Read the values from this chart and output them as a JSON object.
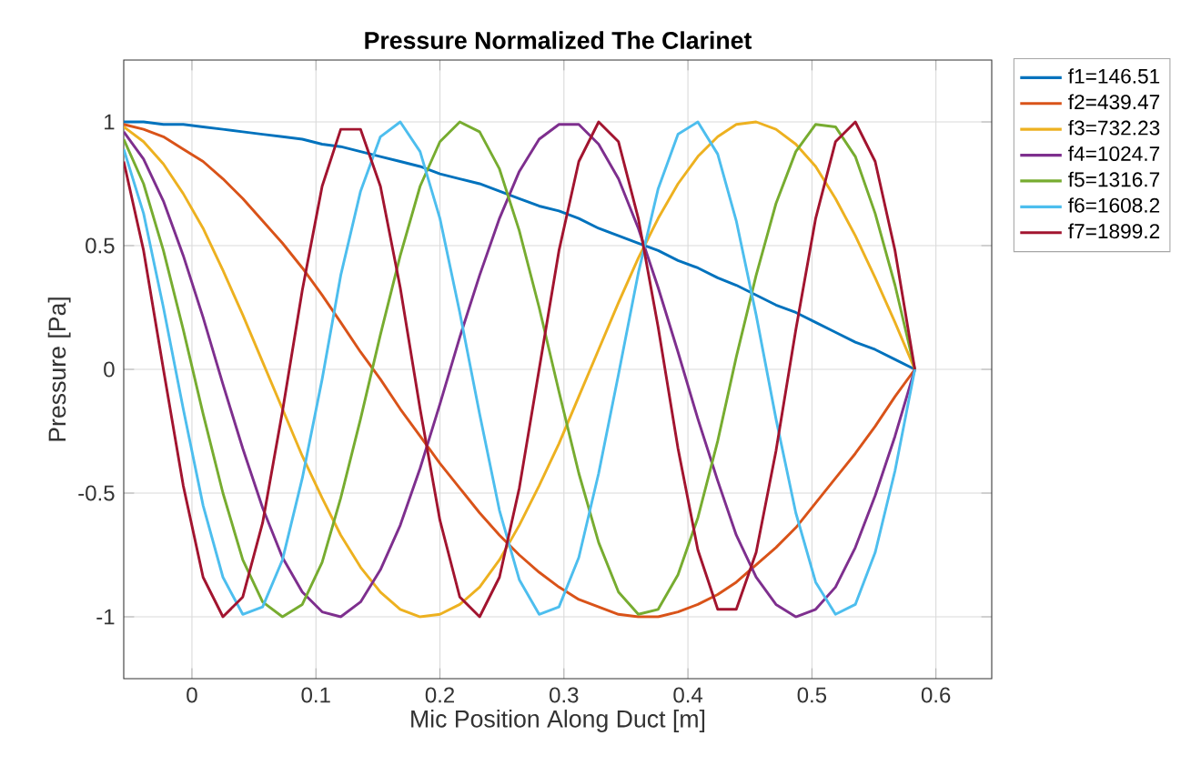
{
  "chart_data": {
    "type": "line",
    "title": "Pressure Normalized The Clarinet",
    "xlabel": "Mic Position Along Duct [m]",
    "ylabel": "Pressure [Pa]",
    "x": [
      -0.055,
      -0.039,
      -0.023,
      -0.007,
      0.009,
      0.025,
      0.041,
      0.057,
      0.073,
      0.089,
      0.105,
      0.12,
      0.136,
      0.152,
      0.168,
      0.184,
      0.2,
      0.216,
      0.232,
      0.248,
      0.264,
      0.28,
      0.296,
      0.312,
      0.328,
      0.344,
      0.36,
      0.376,
      0.392,
      0.408,
      0.424,
      0.439,
      0.455,
      0.471,
      0.487,
      0.503,
      0.519,
      0.535,
      0.551,
      0.567,
      0.583
    ],
    "series": [
      {
        "name": "f1=146.51",
        "color": "#0072bd",
        "values": [
          1.0,
          1.0,
          0.99,
          0.99,
          0.98,
          0.97,
          0.96,
          0.95,
          0.94,
          0.93,
          0.91,
          0.9,
          0.88,
          0.86,
          0.84,
          0.82,
          0.79,
          0.77,
          0.75,
          0.72,
          0.69,
          0.66,
          0.64,
          0.61,
          0.57,
          0.54,
          0.51,
          0.48,
          0.44,
          0.41,
          0.37,
          0.34,
          0.3,
          0.26,
          0.23,
          0.19,
          0.15,
          0.11,
          0.08,
          0.04,
          0.0
        ]
      },
      {
        "name": "f2=439.47",
        "color": "#d95319",
        "values": [
          0.99,
          0.97,
          0.94,
          0.89,
          0.84,
          0.77,
          0.69,
          0.6,
          0.51,
          0.41,
          0.3,
          0.19,
          0.07,
          -0.04,
          -0.16,
          -0.27,
          -0.38,
          -0.48,
          -0.58,
          -0.67,
          -0.75,
          -0.82,
          -0.88,
          -0.93,
          -0.96,
          -0.99,
          -1.0,
          -1.0,
          -0.98,
          -0.95,
          -0.91,
          -0.86,
          -0.79,
          -0.72,
          -0.64,
          -0.54,
          -0.44,
          -0.34,
          -0.23,
          -0.11,
          0.0
        ]
      },
      {
        "name": "f3=732.23",
        "color": "#edb120",
        "values": [
          0.98,
          0.92,
          0.83,
          0.71,
          0.57,
          0.4,
          0.22,
          0.03,
          -0.16,
          -0.35,
          -0.52,
          -0.67,
          -0.8,
          -0.9,
          -0.97,
          -1.0,
          -0.99,
          -0.95,
          -0.88,
          -0.77,
          -0.63,
          -0.47,
          -0.3,
          -0.11,
          0.08,
          0.27,
          0.45,
          0.61,
          0.75,
          0.86,
          0.94,
          0.99,
          1.0,
          0.97,
          0.91,
          0.82,
          0.69,
          0.54,
          0.37,
          0.19,
          0.0
        ]
      },
      {
        "name": "f4=1024.7",
        "color": "#7e2f8e",
        "values": [
          0.96,
          0.85,
          0.68,
          0.46,
          0.21,
          -0.06,
          -0.32,
          -0.56,
          -0.76,
          -0.9,
          -0.98,
          -1.0,
          -0.94,
          -0.81,
          -0.63,
          -0.4,
          -0.14,
          0.13,
          0.38,
          0.61,
          0.8,
          0.93,
          0.99,
          0.99,
          0.91,
          0.77,
          0.57,
          0.33,
          0.07,
          -0.2,
          -0.45,
          -0.67,
          -0.84,
          -0.95,
          -1.0,
          -0.97,
          -0.88,
          -0.72,
          -0.51,
          -0.27,
          0.0
        ]
      },
      {
        "name": "f5=1316.7",
        "color": "#77ac30",
        "values": [
          0.93,
          0.75,
          0.48,
          0.16,
          -0.18,
          -0.5,
          -0.77,
          -0.94,
          -1.0,
          -0.95,
          -0.78,
          -0.52,
          -0.2,
          0.14,
          0.46,
          0.74,
          0.92,
          1.0,
          0.96,
          0.81,
          0.56,
          0.25,
          -0.09,
          -0.42,
          -0.7,
          -0.9,
          -0.99,
          -0.97,
          -0.83,
          -0.6,
          -0.29,
          0.05,
          0.38,
          0.67,
          0.88,
          0.99,
          0.98,
          0.86,
          0.63,
          0.34,
          0.0
        ]
      },
      {
        "name": "f6=1608.2",
        "color": "#4dbeee",
        "values": [
          0.89,
          0.63,
          0.25,
          -0.16,
          -0.55,
          -0.84,
          -0.99,
          -0.96,
          -0.77,
          -0.44,
          -0.04,
          0.38,
          0.72,
          0.94,
          1.0,
          0.88,
          0.61,
          0.23,
          -0.18,
          -0.57,
          -0.85,
          -0.99,
          -0.96,
          -0.76,
          -0.42,
          -0.02,
          0.39,
          0.73,
          0.95,
          1.0,
          0.87,
          0.6,
          0.22,
          -0.2,
          -0.58,
          -0.86,
          -0.99,
          -0.95,
          -0.74,
          -0.41,
          0.0
        ]
      },
      {
        "name": "f7=1899.2",
        "color": "#a2142f",
        "values": [
          0.84,
          0.48,
          0.0,
          -0.47,
          -0.84,
          -1.0,
          -0.92,
          -0.62,
          -0.17,
          0.32,
          0.74,
          0.97,
          0.97,
          0.74,
          0.33,
          -0.16,
          -0.61,
          -0.92,
          -1.0,
          -0.84,
          -0.48,
          0.0,
          0.48,
          0.84,
          1.0,
          0.92,
          0.61,
          0.17,
          -0.32,
          -0.73,
          -0.97,
          -0.97,
          -0.74,
          -0.33,
          0.16,
          0.61,
          0.92,
          1.0,
          0.84,
          0.48,
          0.0
        ]
      }
    ],
    "xlim": [
      -0.055,
      0.645
    ],
    "ylim": [
      -1.25,
      1.25
    ],
    "xticks": [
      0,
      0.1,
      0.2,
      0.3,
      0.4,
      0.5,
      0.6
    ],
    "yticks": [
      -1,
      -0.5,
      0,
      0.5,
      1
    ],
    "grid": true,
    "legend": "top right",
    "marker": "none",
    "line_style": "solid"
  }
}
